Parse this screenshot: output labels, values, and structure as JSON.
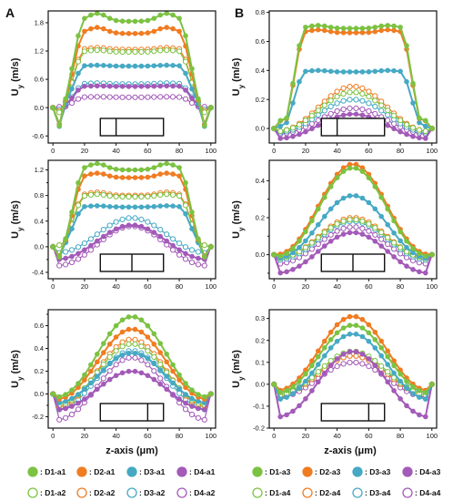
{
  "colors": {
    "D1": "#7cc242",
    "D2": "#f07c22",
    "D3": "#46a9c4",
    "D4": "#a35ab8"
  },
  "x_axis_label": "z-axis (μm)",
  "panel_labels": [
    "A",
    "B"
  ],
  "legend": {
    "left": [
      {
        "series": "D1",
        "filled": true,
        "text": ": D1-a1"
      },
      {
        "series": "D2",
        "filled": true,
        "text": ": D2-a1"
      },
      {
        "series": "D3",
        "filled": true,
        "text": ": D3-a1"
      },
      {
        "series": "D4",
        "filled": true,
        "text": ": D4-a1"
      },
      {
        "series": "D1",
        "filled": false,
        "text": ": D1-a2"
      },
      {
        "series": "D2",
        "filled": false,
        "text": ": D2-a2"
      },
      {
        "series": "D3",
        "filled": false,
        "text": ": D3-a2"
      },
      {
        "series": "D4",
        "filled": false,
        "text": ": D4-a2"
      }
    ],
    "right": [
      {
        "series": "D1",
        "filled": true,
        "text": ": D1-a3"
      },
      {
        "series": "D2",
        "filled": true,
        "text": ": D2-a3"
      },
      {
        "series": "D3",
        "filled": true,
        "text": ": D3-a3"
      },
      {
        "series": "D4",
        "filled": true,
        "text": ": D4-a3"
      },
      {
        "series": "D1",
        "filled": false,
        "text": ": D1-a4"
      },
      {
        "series": "D2",
        "filled": false,
        "text": ": D2-a4"
      },
      {
        "series": "D3",
        "filled": false,
        "text": ": D3-a4"
      },
      {
        "series": "D4",
        "filled": false,
        "text": ": D4-a4"
      }
    ]
  },
  "chart_data": [
    {
      "type": "line",
      "panel": "A",
      "row": 1,
      "ylabel": "Uy (m/s)",
      "xlim": [
        -3,
        103
      ],
      "ylim": [
        -0.75,
        2.05
      ],
      "xticks": [
        0,
        20,
        40,
        60,
        80,
        100
      ],
      "yticks": [
        -0.6,
        0.0,
        0.6,
        1.2,
        1.8
      ],
      "ytick_labels": [
        "-0.6",
        "0.0",
        "0.6",
        "1.2",
        "1.8"
      ],
      "inset_divider_z": 40,
      "grid": false,
      "x": "0..100 step 4",
      "series": [
        {
          "name": "D1-a1",
          "color": "D1",
          "filled": true,
          "shape": "flat",
          "edge": 0.0,
          "min": -0.68,
          "plateau": 1.83,
          "peak": 2.0
        },
        {
          "name": "D2-a1",
          "color": "D2",
          "filled": true,
          "shape": "flat",
          "edge": 0.0,
          "min": -0.62,
          "plateau": 1.57,
          "peak": 1.7
        },
        {
          "name": "D3-a1",
          "color": "D3",
          "filled": true,
          "shape": "flat",
          "edge": 0.0,
          "min": -0.6,
          "plateau": 0.88,
          "peak": 0.9
        },
        {
          "name": "D4-a1",
          "color": "D4",
          "filled": true,
          "shape": "flat",
          "edge": 0.0,
          "min": -0.5,
          "plateau": 0.45,
          "peak": 0.46
        },
        {
          "name": "D1-a2",
          "color": "D1",
          "filled": false,
          "shape": "flat",
          "edge": 0.0,
          "min": -0.25,
          "plateau": 1.18,
          "peak": 1.22
        },
        {
          "name": "D2-a2",
          "color": "D2",
          "filled": false,
          "shape": "flat",
          "edge": 0.0,
          "min": -0.22,
          "plateau": 1.23,
          "peak": 1.27
        },
        {
          "name": "D3-a2",
          "color": "D3",
          "filled": false,
          "shape": "flat",
          "edge": 0.0,
          "min": -0.1,
          "plateau": 0.5,
          "peak": 0.52
        },
        {
          "name": "D4-a2",
          "color": "D4",
          "filled": false,
          "shape": "flat",
          "edge": 0.0,
          "min": 0.0,
          "plateau": 0.22,
          "peak": 0.23
        }
      ]
    },
    {
      "type": "line",
      "panel": "A",
      "row": 2,
      "ylabel": "Uy (m/s)",
      "xlim": [
        -3,
        103
      ],
      "ylim": [
        -0.5,
        1.35
      ],
      "xticks": [
        0,
        20,
        40,
        60,
        80,
        100
      ],
      "yticks": [
        -0.4,
        -0.2,
        0.0,
        0.2,
        0.4,
        0.6,
        0.8,
        1.0,
        1.2
      ],
      "ytick_labels": [
        "-0.4",
        "",
        "0.0",
        "",
        "0.4",
        "",
        "0.8",
        "",
        "1.2"
      ],
      "inset_divider_z": 50,
      "grid": false,
      "x": "0..100 step 4",
      "series": [
        {
          "name": "D1-a1",
          "color": "D1",
          "filled": true,
          "shape": "flat",
          "edge": 0.0,
          "min": -0.33,
          "plateau": 1.2,
          "peak": 1.3
        },
        {
          "name": "D2-a1",
          "color": "D2",
          "filled": true,
          "shape": "flat",
          "edge": 0.0,
          "min": -0.3,
          "plateau": 1.08,
          "peak": 1.15
        },
        {
          "name": "D3-a1",
          "color": "D3",
          "filled": true,
          "shape": "flat",
          "edge": 0.0,
          "min": -0.25,
          "plateau": 0.62,
          "peak": 0.64
        },
        {
          "name": "D4-a1",
          "color": "D4",
          "filled": true,
          "shape": "bell",
          "edge": 0.0,
          "min": -0.2,
          "peak": 0.34
        },
        {
          "name": "D1-a2",
          "color": "D1",
          "filled": false,
          "shape": "flat",
          "edge": 0.0,
          "min": -0.05,
          "plateau": 0.78,
          "peak": 0.82
        },
        {
          "name": "D2-a2",
          "color": "D2",
          "filled": false,
          "shape": "flat",
          "edge": 0.0,
          "min": -0.05,
          "plateau": 0.8,
          "peak": 0.85
        },
        {
          "name": "D3-a2",
          "color": "D3",
          "filled": false,
          "shape": "bell",
          "edge": 0.0,
          "min": -0.1,
          "peak": 0.45
        },
        {
          "name": "D4-a2",
          "color": "D4",
          "filled": false,
          "shape": "bell",
          "edge": 0.0,
          "min": -0.3,
          "peak": 0.32
        }
      ]
    },
    {
      "type": "line",
      "panel": "A",
      "row": 3,
      "ylabel": "Uy (m/s)",
      "xlim": [
        -3,
        103
      ],
      "ylim": [
        -0.3,
        0.74
      ],
      "xticks": [
        0,
        20,
        40,
        60,
        80,
        100
      ],
      "yticks": [
        -0.2,
        -0.1,
        0.0,
        0.1,
        0.2,
        0.3,
        0.4,
        0.5,
        0.6,
        0.7
      ],
      "ytick_labels": [
        "-0.2",
        "",
        "0.0",
        "",
        "0.2",
        "",
        "0.4",
        "",
        "0.6",
        ""
      ],
      "inset_divider_z": 60,
      "grid": false,
      "x": "0..100 step 4",
      "series": [
        {
          "name": "D1-a1",
          "color": "D1",
          "filled": true,
          "shape": "bell",
          "edge": 0.0,
          "min": -0.03,
          "peak": 0.68
        },
        {
          "name": "D2-a1",
          "color": "D2",
          "filled": true,
          "shape": "bell",
          "edge": 0.0,
          "min": -0.05,
          "peak": 0.57
        },
        {
          "name": "D3-a1",
          "color": "D3",
          "filled": true,
          "shape": "bell",
          "edge": 0.0,
          "min": -0.08,
          "peak": 0.36
        },
        {
          "name": "D4-a1",
          "color": "D4",
          "filled": true,
          "shape": "bell",
          "edge": 0.0,
          "min": -0.14,
          "peak": 0.2
        },
        {
          "name": "D1-a2",
          "color": "D1",
          "filled": false,
          "shape": "bell",
          "edge": 0.0,
          "min": -0.1,
          "peak": 0.44
        },
        {
          "name": "D2-a2",
          "color": "D2",
          "filled": false,
          "shape": "bell",
          "edge": 0.0,
          "min": -0.12,
          "peak": 0.48
        },
        {
          "name": "D3-a2",
          "color": "D3",
          "filled": false,
          "shape": "bell",
          "edge": 0.0,
          "min": -0.14,
          "peak": 0.38
        },
        {
          "name": "D4-a2",
          "color": "D4",
          "filled": false,
          "shape": "bell",
          "edge": 0.0,
          "min": -0.23,
          "peak": 0.32
        }
      ]
    },
    {
      "type": "line",
      "panel": "B",
      "row": 1,
      "ylabel": "Uy (m/s)",
      "xlim": [
        -3,
        103
      ],
      "ylim": [
        -0.1,
        0.81
      ],
      "xticks": [
        0,
        20,
        40,
        60,
        80,
        100
      ],
      "yticks": [
        0.0,
        0.2,
        0.4,
        0.6,
        0.8
      ],
      "ytick_labels": [
        "0.0",
        "0.2",
        "0.4",
        "0.6",
        "0.8"
      ],
      "inset_divider_z": 40,
      "grid": false,
      "x": "0..100 step 4",
      "series": [
        {
          "name": "D1-a3",
          "color": "D1",
          "filled": true,
          "shape": "flat",
          "edge": 0.0,
          "min": 0.0,
          "plateau": 0.69,
          "peak": 0.71
        },
        {
          "name": "D2-a3",
          "color": "D2",
          "filled": true,
          "shape": "flat",
          "edge": 0.0,
          "min": 0.0,
          "plateau": 0.66,
          "peak": 0.68
        },
        {
          "name": "D3-a3",
          "color": "D3",
          "filled": true,
          "shape": "flat",
          "edge": 0.0,
          "min": -0.02,
          "plateau": 0.39,
          "peak": 0.4
        },
        {
          "name": "D4-a3",
          "color": "D4",
          "filled": true,
          "shape": "bell",
          "edge": 0.0,
          "min": -0.07,
          "peak": 0.1
        },
        {
          "name": "D1-a4",
          "color": "D1",
          "filled": false,
          "shape": "bell",
          "edge": 0.0,
          "min": -0.02,
          "peak": 0.25
        },
        {
          "name": "D2-a4",
          "color": "D2",
          "filled": false,
          "shape": "bell",
          "edge": 0.0,
          "min": -0.02,
          "peak": 0.29
        },
        {
          "name": "D3-a4",
          "color": "D3",
          "filled": false,
          "shape": "bell",
          "edge": 0.0,
          "min": -0.03,
          "peak": 0.2
        },
        {
          "name": "D4-a4",
          "color": "D4",
          "filled": false,
          "shape": "bell",
          "edge": 0.0,
          "min": -0.04,
          "peak": 0.14
        }
      ]
    },
    {
      "type": "line",
      "panel": "B",
      "row": 2,
      "ylabel": "Uy (m/s)",
      "xlim": [
        -3,
        103
      ],
      "ylim": [
        -0.13,
        0.51
      ],
      "xticks": [
        0,
        20,
        40,
        60,
        80,
        100
      ],
      "yticks": [
        -0.1,
        0.0,
        0.1,
        0.2,
        0.3,
        0.4
      ],
      "ytick_labels": [
        "",
        "0.0",
        "",
        "0.2",
        "",
        "0.4"
      ],
      "inset_divider_z": 50,
      "grid": false,
      "x": "0..100 step 4",
      "series": [
        {
          "name": "D1-a3",
          "color": "D1",
          "filled": true,
          "shape": "bell",
          "edge": 0.0,
          "min": -0.01,
          "peak": 0.47
        },
        {
          "name": "D2-a3",
          "color": "D2",
          "filled": true,
          "shape": "bell",
          "edge": 0.0,
          "min": 0.0,
          "peak": 0.49
        },
        {
          "name": "D3-a3",
          "color": "D3",
          "filled": true,
          "shape": "bell",
          "edge": 0.0,
          "min": -0.02,
          "peak": 0.32
        },
        {
          "name": "D4-a3",
          "color": "D4",
          "filled": true,
          "shape": "bell",
          "edge": 0.0,
          "min": -0.1,
          "peak": 0.12
        },
        {
          "name": "D1-a4",
          "color": "D1",
          "filled": false,
          "shape": "bell",
          "edge": 0.0,
          "min": -0.02,
          "peak": 0.19
        },
        {
          "name": "D2-a4",
          "color": "D2",
          "filled": false,
          "shape": "bell",
          "edge": 0.0,
          "min": -0.02,
          "peak": 0.2
        },
        {
          "name": "D3-a4",
          "color": "D3",
          "filled": false,
          "shape": "bell",
          "edge": 0.0,
          "min": -0.03,
          "peak": 0.18
        },
        {
          "name": "D4-a4",
          "color": "D4",
          "filled": false,
          "shape": "bell",
          "edge": 0.0,
          "min": -0.05,
          "peak": 0.15
        }
      ]
    },
    {
      "type": "line",
      "panel": "B",
      "row": 3,
      "ylabel": "Uy (m/s)",
      "xlim": [
        -3,
        103
      ],
      "ylim": [
        -0.2,
        0.34
      ],
      "xticks": [
        0,
        20,
        40,
        60,
        80,
        100
      ],
      "yticks": [
        -0.2,
        -0.1,
        0.0,
        0.1,
        0.2,
        0.3
      ],
      "ytick_labels": [
        "-0.2",
        "-0.1",
        "0.0",
        "0.1",
        "0.2",
        "0.3"
      ],
      "inset_divider_z": 60,
      "grid": false,
      "x": "0..100 step 4",
      "series": [
        {
          "name": "D1-a3",
          "color": "D1",
          "filled": true,
          "shape": "bell",
          "edge": 0.0,
          "min": -0.04,
          "peak": 0.27
        },
        {
          "name": "D2-a3",
          "color": "D2",
          "filled": true,
          "shape": "bell",
          "edge": 0.0,
          "min": -0.03,
          "peak": 0.31
        },
        {
          "name": "D3-a3",
          "color": "D3",
          "filled": true,
          "shape": "bell",
          "edge": 0.0,
          "min": -0.07,
          "peak": 0.23
        },
        {
          "name": "D4-a3",
          "color": "D4",
          "filled": true,
          "shape": "bell",
          "edge": 0.0,
          "min": -0.15,
          "peak": 0.15
        },
        {
          "name": "D1-a4",
          "color": "D1",
          "filled": false,
          "shape": "bell",
          "edge": 0.0,
          "min": -0.05,
          "peak": 0.15
        },
        {
          "name": "D2-a4",
          "color": "D2",
          "filled": false,
          "shape": "bell",
          "edge": 0.0,
          "min": -0.05,
          "peak": 0.13
        },
        {
          "name": "D3-a4",
          "color": "D3",
          "filled": false,
          "shape": "bell",
          "edge": 0.0,
          "min": -0.04,
          "peak": 0.13
        },
        {
          "name": "D4-a4",
          "color": "D4",
          "filled": false,
          "shape": "bell",
          "edge": 0.0,
          "min": -0.06,
          "peak": 0.1
        }
      ]
    }
  ]
}
